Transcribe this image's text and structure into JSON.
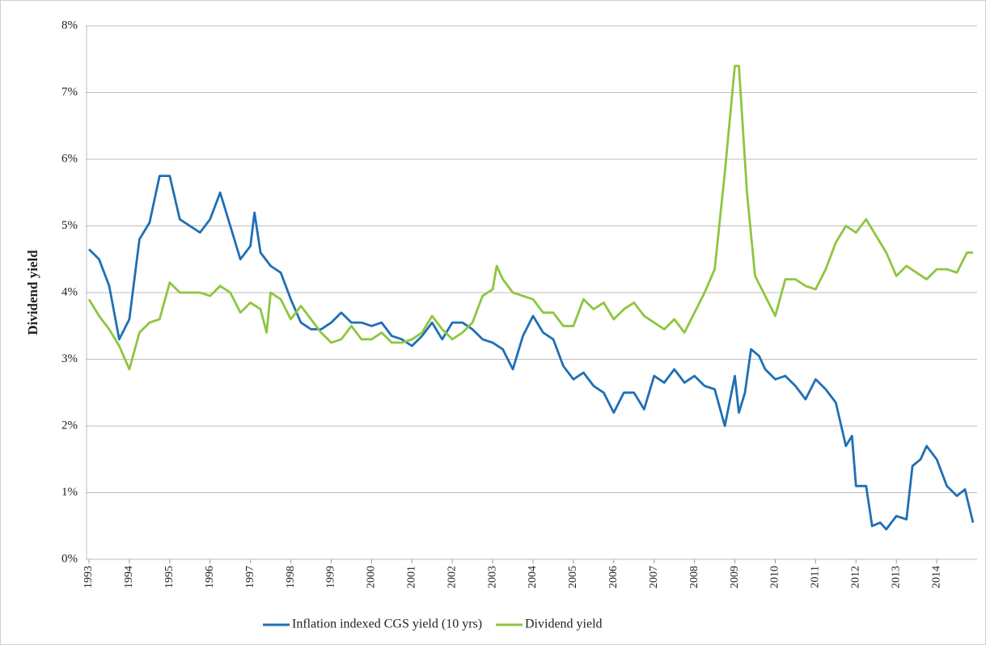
{
  "chart_data": {
    "type": "line",
    "y_label": "Dividend yield",
    "xlim": [
      1993,
      2015
    ],
    "xticks": [
      1993,
      1994,
      1995,
      1996,
      1997,
      1998,
      1999,
      2000,
      2001,
      2002,
      2003,
      2004,
      2005,
      2006,
      2007,
      2008,
      2009,
      2010,
      2011,
      2012,
      2013,
      2014
    ],
    "ylim": [
      0,
      8
    ],
    "yticks": [
      {
        "value": 0,
        "label": "0%"
      },
      {
        "value": 1,
        "label": "1%"
      },
      {
        "value": 2,
        "label": "2%"
      },
      {
        "value": 3,
        "label": "3%"
      },
      {
        "value": 4,
        "label": "4%"
      },
      {
        "value": 5,
        "label": "5%"
      },
      {
        "value": 6,
        "label": "6%"
      },
      {
        "value": 7,
        "label": "7%"
      },
      {
        "value": 8,
        "label": "8%"
      }
    ],
    "grid": true,
    "legend": "bottom",
    "series": [
      {
        "name": "Inflation indexed CGS yield (10 yrs)",
        "color": "#1f6fb5",
        "x": [
          1993.0,
          1993.25,
          1993.5,
          1993.75,
          1994.0,
          1994.25,
          1994.5,
          1994.75,
          1995.0,
          1995.25,
          1995.5,
          1995.75,
          1996.0,
          1996.25,
          1996.5,
          1996.75,
          1997.0,
          1997.1,
          1997.25,
          1997.5,
          1997.75,
          1998.0,
          1998.25,
          1998.5,
          1998.75,
          1999.0,
          1999.25,
          1999.5,
          1999.75,
          2000.0,
          2000.25,
          2000.5,
          2000.75,
          2001.0,
          2001.25,
          2001.5,
          2001.75,
          2002.0,
          2002.25,
          2002.5,
          2002.75,
          2003.0,
          2003.25,
          2003.5,
          2003.75,
          2004.0,
          2004.25,
          2004.5,
          2004.75,
          2005.0,
          2005.25,
          2005.5,
          2005.75,
          2006.0,
          2006.25,
          2006.5,
          2006.75,
          2007.0,
          2007.25,
          2007.5,
          2007.75,
          2008.0,
          2008.25,
          2008.5,
          2008.75,
          2009.0,
          2009.1,
          2009.25,
          2009.4,
          2009.6,
          2009.75,
          2010.0,
          2010.25,
          2010.5,
          2010.75,
          2011.0,
          2011.25,
          2011.5,
          2011.75,
          2011.9,
          2012.0,
          2012.25,
          2012.4,
          2012.6,
          2012.75,
          2013.0,
          2013.25,
          2013.4,
          2013.6,
          2013.75,
          2014.0,
          2014.25,
          2014.5,
          2014.7,
          2014.9
        ],
        "values": [
          4.65,
          4.5,
          4.1,
          3.3,
          3.6,
          4.8,
          5.05,
          5.75,
          5.75,
          5.1,
          5.0,
          4.9,
          5.1,
          5.5,
          5.0,
          4.5,
          4.7,
          5.2,
          4.6,
          4.4,
          4.3,
          3.9,
          3.55,
          3.45,
          3.45,
          3.55,
          3.7,
          3.55,
          3.55,
          3.5,
          3.55,
          3.35,
          3.3,
          3.2,
          3.35,
          3.55,
          3.3,
          3.55,
          3.55,
          3.45,
          3.3,
          3.25,
          3.15,
          2.85,
          3.35,
          3.65,
          3.4,
          3.3,
          2.9,
          2.7,
          2.8,
          2.6,
          2.5,
          2.2,
          2.5,
          2.5,
          2.25,
          2.75,
          2.65,
          2.85,
          2.65,
          2.75,
          2.6,
          2.55,
          2.0,
          2.75,
          2.2,
          2.5,
          3.15,
          3.05,
          2.85,
          2.7,
          2.75,
          2.6,
          2.4,
          2.7,
          2.55,
          2.35,
          1.7,
          1.85,
          1.1,
          1.1,
          0.5,
          0.55,
          0.45,
          0.65,
          0.6,
          1.4,
          1.5,
          1.7,
          1.5,
          1.1,
          0.95,
          1.05,
          0.55
        ]
      },
      {
        "name": "Dividend yield",
        "color": "#8dc63f",
        "x": [
          1993.0,
          1993.25,
          1993.5,
          1993.75,
          1994.0,
          1994.25,
          1994.5,
          1994.75,
          1995.0,
          1995.25,
          1995.5,
          1995.75,
          1996.0,
          1996.25,
          1996.5,
          1996.75,
          1997.0,
          1997.25,
          1997.4,
          1997.5,
          1997.75,
          1998.0,
          1998.25,
          1998.5,
          1998.75,
          1999.0,
          1999.25,
          1999.5,
          1999.75,
          2000.0,
          2000.25,
          2000.5,
          2000.75,
          2001.0,
          2001.25,
          2001.5,
          2001.75,
          2002.0,
          2002.25,
          2002.5,
          2002.75,
          2003.0,
          2003.1,
          2003.25,
          2003.5,
          2003.75,
          2004.0,
          2004.25,
          2004.5,
          2004.75,
          2005.0,
          2005.25,
          2005.5,
          2005.75,
          2006.0,
          2006.25,
          2006.5,
          2006.75,
          2007.0,
          2007.25,
          2007.5,
          2007.75,
          2008.0,
          2008.25,
          2008.5,
          2008.75,
          2009.0,
          2009.1,
          2009.3,
          2009.5,
          2009.75,
          2010.0,
          2010.25,
          2010.5,
          2010.75,
          2011.0,
          2011.25,
          2011.5,
          2011.75,
          2012.0,
          2012.25,
          2012.5,
          2012.75,
          2013.0,
          2013.25,
          2013.5,
          2013.75,
          2014.0,
          2014.25,
          2014.5,
          2014.75,
          2014.9
        ],
        "values": [
          3.9,
          3.65,
          3.45,
          3.2,
          2.85,
          3.4,
          3.55,
          3.6,
          4.15,
          4.0,
          4.0,
          4.0,
          3.95,
          4.1,
          4.0,
          3.7,
          3.85,
          3.75,
          3.4,
          4.0,
          3.9,
          3.6,
          3.8,
          3.6,
          3.4,
          3.25,
          3.3,
          3.5,
          3.3,
          3.3,
          3.4,
          3.25,
          3.25,
          3.3,
          3.4,
          3.65,
          3.45,
          3.3,
          3.4,
          3.55,
          3.95,
          4.05,
          4.4,
          4.2,
          4.0,
          3.95,
          3.9,
          3.7,
          3.7,
          3.5,
          3.5,
          3.9,
          3.75,
          3.85,
          3.6,
          3.75,
          3.85,
          3.65,
          3.55,
          3.45,
          3.6,
          3.4,
          3.7,
          4.0,
          4.35,
          5.8,
          7.4,
          7.4,
          5.5,
          4.25,
          3.95,
          3.65,
          4.2,
          4.2,
          4.1,
          4.05,
          4.35,
          4.75,
          5.0,
          4.9,
          5.1,
          4.85,
          4.6,
          4.25,
          4.4,
          4.3,
          4.2,
          4.35,
          4.35,
          4.3,
          4.6,
          4.6
        ]
      }
    ]
  }
}
